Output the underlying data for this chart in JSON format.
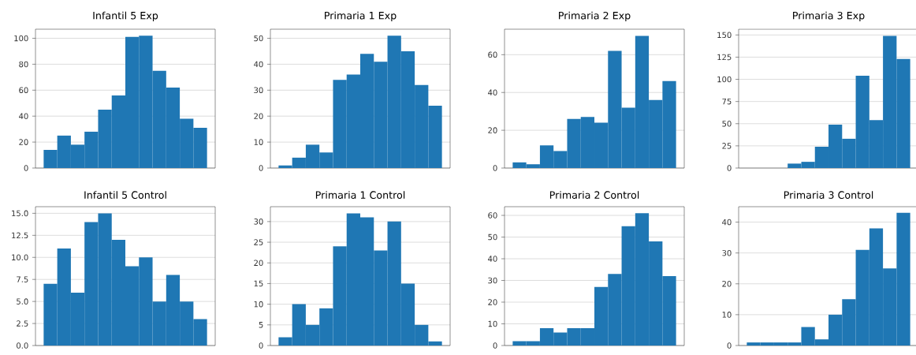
{
  "chart_data": [
    {
      "type": "bar",
      "title": "Infantil 5 Exp",
      "categories": [
        null,
        null,
        null,
        null,
        null,
        null,
        null,
        null,
        null,
        null,
        null,
        null
      ],
      "values": [
        14,
        25,
        18,
        28,
        45,
        56,
        101,
        102,
        75,
        62,
        38,
        31
      ],
      "color": "#1f77b4",
      "ylim": [
        0,
        107
      ],
      "yticks": [
        0,
        20,
        40,
        60,
        80,
        100
      ],
      "grid": "y"
    },
    {
      "type": "bar",
      "title": "Primaria 1 Exp",
      "categories": [
        null,
        null,
        null,
        null,
        null,
        null,
        null,
        null,
        null,
        null,
        null,
        null
      ],
      "values": [
        1,
        4,
        9,
        6,
        34,
        36,
        44,
        41,
        51,
        45,
        32,
        24
      ],
      "color": "#1f77b4",
      "ylim": [
        0,
        53.5
      ],
      "yticks": [
        0,
        10,
        20,
        30,
        40,
        50
      ],
      "grid": "y"
    },
    {
      "type": "bar",
      "title": "Primaria 2 Exp",
      "categories": [
        null,
        null,
        null,
        null,
        null,
        null,
        null,
        null,
        null,
        null,
        null,
        null
      ],
      "values": [
        3,
        2,
        12,
        9,
        26,
        27,
        24,
        62,
        32,
        70,
        36,
        46
      ],
      "color": "#1f77b4",
      "ylim": [
        0,
        73.5
      ],
      "yticks": [
        0,
        20,
        40,
        60
      ],
      "grid": "y"
    },
    {
      "type": "bar",
      "title": "Primaria 3 Exp",
      "categories": [
        null,
        null,
        null,
        null,
        null,
        null,
        null,
        null,
        null,
        null,
        null,
        null
      ],
      "values": [
        0,
        0,
        0,
        5,
        7,
        24,
        49,
        33,
        104,
        54,
        149,
        123
      ],
      "color": "#1f77b4",
      "ylim": [
        0,
        156.5
      ],
      "yticks": [
        0,
        25,
        50,
        75,
        100,
        125,
        150
      ],
      "grid": "y"
    },
    {
      "type": "bar",
      "title": "Infantil 5 Control",
      "categories": [
        null,
        null,
        null,
        null,
        null,
        null,
        null,
        null,
        null,
        null,
        null,
        null
      ],
      "values": [
        7,
        11,
        6,
        14,
        15,
        12,
        9,
        10,
        5,
        8,
        5,
        3
      ],
      "color": "#1f77b4",
      "ylim": [
        0,
        15.75
      ],
      "yticks": [
        {
          "value": 0,
          "label": "0.0"
        },
        {
          "value": 2.5,
          "label": "2.5"
        },
        {
          "value": 5,
          "label": "5.0"
        },
        {
          "value": 7.5,
          "label": "7.5"
        },
        {
          "value": 10,
          "label": "10.0"
        },
        {
          "value": 12.5,
          "label": "12.5"
        },
        {
          "value": 15,
          "label": "15.0"
        }
      ],
      "grid": "y"
    },
    {
      "type": "bar",
      "title": "Primaria 1 Control",
      "categories": [
        null,
        null,
        null,
        null,
        null,
        null,
        null,
        null,
        null,
        null,
        null,
        null
      ],
      "values": [
        2,
        10,
        5,
        9,
        24,
        32,
        31,
        23,
        30,
        15,
        5,
        1
      ],
      "color": "#1f77b4",
      "ylim": [
        0,
        33.6
      ],
      "yticks": [
        0,
        5,
        10,
        15,
        20,
        25,
        30
      ],
      "grid": "y"
    },
    {
      "type": "bar",
      "title": "Primaria 2 Control",
      "categories": [
        null,
        null,
        null,
        null,
        null,
        null,
        null,
        null,
        null,
        null,
        null,
        null
      ],
      "values": [
        2,
        2,
        8,
        6,
        8,
        8,
        27,
        33,
        55,
        61,
        48,
        32
      ],
      "color": "#1f77b4",
      "ylim": [
        0,
        64
      ],
      "yticks": [
        0,
        10,
        20,
        30,
        40,
        50,
        60
      ],
      "grid": "y"
    },
    {
      "type": "bar",
      "title": "Primaria 3 Control",
      "categories": [
        null,
        null,
        null,
        null,
        null,
        null,
        null,
        null,
        null,
        null,
        null,
        null
      ],
      "values": [
        1,
        1,
        1,
        1,
        6,
        2,
        10,
        15,
        31,
        38,
        25,
        43
      ],
      "color": "#1f77b4",
      "ylim": [
        0,
        45
      ],
      "yticks": [
        0,
        10,
        20,
        30,
        40
      ],
      "grid": "y"
    }
  ]
}
